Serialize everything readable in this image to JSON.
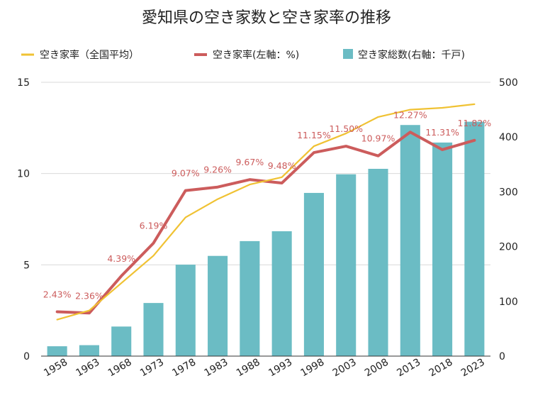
{
  "chart_data": {
    "type": "bar",
    "title": "愛知県の空き家数と空き家率の推移",
    "categories": [
      "1958",
      "1963",
      "1968",
      "1973",
      "1978",
      "1983",
      "1988",
      "1993",
      "1998",
      "2003",
      "2008",
      "2013",
      "2018",
      "2023"
    ],
    "legend": [
      {
        "name": "空き家率（全国平均）",
        "color": "#f0c233",
        "kind": "line-thin"
      },
      {
        "name": "空き家率(左軸：%)",
        "color": "#cc5c5c",
        "kind": "line-thick"
      },
      {
        "name": "空き家総数(右軸：千戸)",
        "color": "#6bbcc4",
        "kind": "bar"
      }
    ],
    "y_left": {
      "min": 0,
      "max": 15,
      "ticks": [
        "0",
        "5",
        "10",
        "15"
      ]
    },
    "y_right": {
      "min": 0,
      "max": 500,
      "ticks": [
        "0",
        "100",
        "200",
        "300",
        "400",
        "500"
      ]
    },
    "series": [
      {
        "name": "空き家総数(右軸：千戸)",
        "axis": "right",
        "type": "bar",
        "color": "#6bbcc4",
        "values": [
          18,
          20,
          54,
          97,
          167,
          183,
          210,
          228,
          298,
          332,
          342,
          422,
          390,
          428
        ]
      },
      {
        "name": "空き家率(左軸：%)",
        "axis": "left",
        "type": "line",
        "color": "#cc5c5c",
        "values": [
          2.43,
          2.36,
          4.39,
          6.19,
          9.07,
          9.26,
          9.67,
          9.48,
          11.15,
          11.5,
          10.97,
          12.27,
          11.31,
          11.82
        ],
        "labels": [
          "2.43%",
          "2.36%",
          "4.39%",
          "6.19%",
          "9.07%",
          "9.26%",
          "9.67%",
          "9.48%",
          "11.15%",
          "11.50%",
          "10.97%",
          "12.27%",
          "11.31%",
          "11.82%"
        ]
      },
      {
        "name": "空き家率（全国平均）",
        "axis": "left",
        "type": "line",
        "color": "#f0c233",
        "values": [
          2.0,
          2.5,
          4.0,
          5.5,
          7.6,
          8.6,
          9.4,
          9.8,
          11.5,
          12.2,
          13.1,
          13.5,
          13.6,
          13.8
        ]
      }
    ],
    "grid": true,
    "legend_position": "top"
  }
}
